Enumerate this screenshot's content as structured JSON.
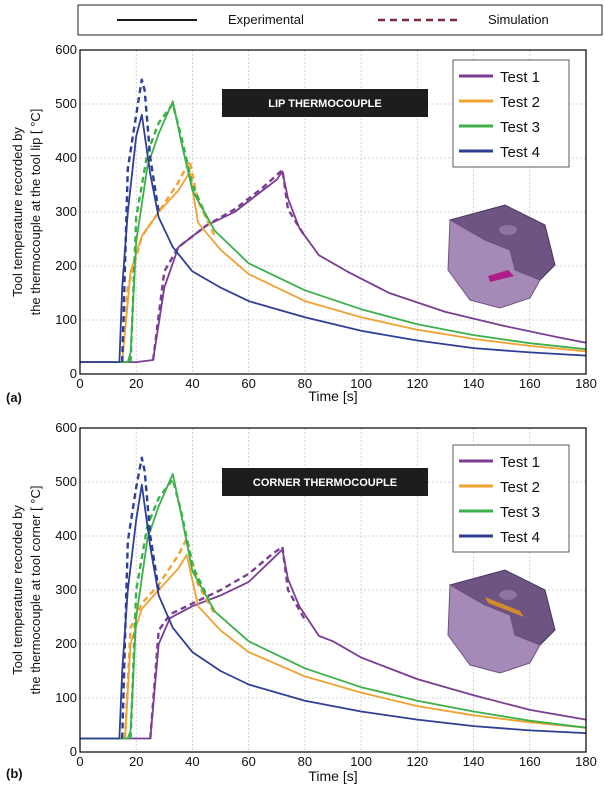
{
  "legend_top": {
    "experimental": "Experimental",
    "simulation": "Simulation"
  },
  "colors": {
    "test1": "#7b3d93",
    "test2": "#f0a232",
    "test3": "#3cb04a",
    "test4": "#2e3f94",
    "frame": "#000000"
  },
  "chart_data": [
    {
      "type": "line",
      "panel_label": "(a)",
      "annotation": "LIP THERMOCOUPLE",
      "xlabel": "Time [s]",
      "ylabel": "Tool temperature recorded by the thermocouple at the tool lip [ °C]",
      "xlim": [
        0,
        180
      ],
      "ylim": [
        0,
        600
      ],
      "xticks": [
        0,
        20,
        40,
        60,
        80,
        100,
        120,
        140,
        160,
        180
      ],
      "yticks": [
        0,
        100,
        200,
        300,
        400,
        500,
        600
      ],
      "grid": true,
      "legend_placement": "top-right",
      "series": [
        {
          "name": "Test 1",
          "color_key": "test1",
          "experimental": [
            [
              0,
              22
            ],
            [
              20,
              22
            ],
            [
              26,
              26
            ],
            [
              30,
              160
            ],
            [
              35,
              235
            ],
            [
              45,
              275
            ],
            [
              55,
              300
            ],
            [
              65,
              340
            ],
            [
              70,
              360
            ],
            [
              72,
              375
            ],
            [
              74,
              325
            ],
            [
              78,
              270
            ],
            [
              85,
              220
            ],
            [
              95,
              190
            ],
            [
              110,
              150
            ],
            [
              130,
              115
            ],
            [
              150,
              90
            ],
            [
              170,
              68
            ],
            [
              180,
              58
            ]
          ],
          "simulation": [
            [
              26,
              26
            ],
            [
              30,
              190
            ],
            [
              35,
              235
            ],
            [
              45,
              275
            ],
            [
              55,
              305
            ],
            [
              65,
              345
            ],
            [
              72,
              378
            ],
            [
              74,
              305
            ],
            [
              80,
              255
            ]
          ]
        },
        {
          "name": "Test 2",
          "color_key": "test2",
          "experimental": [
            [
              0,
              22
            ],
            [
              15,
              22
            ],
            [
              18,
              190
            ],
            [
              22,
              255
            ],
            [
              28,
              300
            ],
            [
              35,
              340
            ],
            [
              38,
              365
            ],
            [
              39,
              375
            ],
            [
              42,
              280
            ],
            [
              50,
              230
            ],
            [
              60,
              185
            ],
            [
              80,
              135
            ],
            [
              100,
              105
            ],
            [
              120,
              82
            ],
            [
              140,
              65
            ],
            [
              160,
              52
            ],
            [
              180,
              42
            ]
          ],
          "simulation": [
            [
              15,
              22
            ],
            [
              17,
              160
            ],
            [
              22,
              255
            ],
            [
              28,
              300
            ],
            [
              35,
              355
            ],
            [
              39,
              395
            ],
            [
              42,
              320
            ],
            [
              48,
              255
            ]
          ]
        },
        {
          "name": "Test 3",
          "color_key": "test3",
          "experimental": [
            [
              0,
              22
            ],
            [
              17,
              22
            ],
            [
              18,
              40
            ],
            [
              20,
              245
            ],
            [
              24,
              385
            ],
            [
              28,
              445
            ],
            [
              33,
              505
            ],
            [
              36,
              430
            ],
            [
              40,
              340
            ],
            [
              48,
              265
            ],
            [
              60,
              205
            ],
            [
              80,
              155
            ],
            [
              100,
              120
            ],
            [
              120,
              92
            ],
            [
              140,
              72
            ],
            [
              160,
              57
            ],
            [
              180,
              46
            ]
          ],
          "simulation": [
            [
              18,
              22
            ],
            [
              20,
              290
            ],
            [
              24,
              410
            ],
            [
              28,
              465
            ],
            [
              33,
              500
            ],
            [
              36,
              440
            ],
            [
              40,
              350
            ],
            [
              46,
              280
            ]
          ]
        },
        {
          "name": "Test 4",
          "color_key": "test4",
          "experimental": [
            [
              0,
              22
            ],
            [
              14,
              22
            ],
            [
              15,
              160
            ],
            [
              17,
              300
            ],
            [
              20,
              440
            ],
            [
              22,
              480
            ],
            [
              25,
              370
            ],
            [
              28,
              290
            ],
            [
              33,
              235
            ],
            [
              40,
              190
            ],
            [
              50,
              160
            ],
            [
              60,
              135
            ],
            [
              80,
              105
            ],
            [
              100,
              80
            ],
            [
              120,
              62
            ],
            [
              140,
              48
            ],
            [
              160,
              40
            ],
            [
              180,
              34
            ]
          ],
          "simulation": [
            [
              15,
              22
            ],
            [
              17,
              380
            ],
            [
              20,
              480
            ],
            [
              22,
              545
            ],
            [
              23,
              525
            ],
            [
              25,
              400
            ],
            [
              28,
              300
            ]
          ]
        }
      ]
    },
    {
      "type": "line",
      "panel_label": "(b)",
      "annotation": "CORNER THERMOCOUPLE",
      "xlabel": "Time [s]",
      "ylabel": "Tool temperature recorded by the thermocouple at tool corner [ °C]",
      "xlim": [
        0,
        180
      ],
      "ylim": [
        0,
        600
      ],
      "xticks": [
        0,
        20,
        40,
        60,
        80,
        100,
        120,
        140,
        160,
        180
      ],
      "yticks": [
        0,
        100,
        200,
        300,
        400,
        500,
        600
      ],
      "grid": true,
      "legend_placement": "top-right",
      "series": [
        {
          "name": "Test 1",
          "color_key": "test1",
          "experimental": [
            [
              0,
              25
            ],
            [
              20,
              25
            ],
            [
              25,
              25
            ],
            [
              28,
              200
            ],
            [
              32,
              248
            ],
            [
              40,
              270
            ],
            [
              50,
              290
            ],
            [
              60,
              315
            ],
            [
              68,
              355
            ],
            [
              72,
              375
            ],
            [
              74,
              320
            ],
            [
              78,
              270
            ],
            [
              85,
              215
            ],
            [
              90,
              205
            ],
            [
              100,
              175
            ],
            [
              120,
              135
            ],
            [
              140,
              105
            ],
            [
              160,
              78
            ],
            [
              180,
              60
            ]
          ],
          "simulation": [
            [
              25,
              25
            ],
            [
              28,
              225
            ],
            [
              32,
              255
            ],
            [
              40,
              275
            ],
            [
              50,
              300
            ],
            [
              60,
              330
            ],
            [
              68,
              365
            ],
            [
              72,
              380
            ],
            [
              74,
              300
            ],
            [
              80,
              245
            ]
          ]
        },
        {
          "name": "Test 2",
          "color_key": "test2",
          "experimental": [
            [
              0,
              25
            ],
            [
              16,
              25
            ],
            [
              18,
              200
            ],
            [
              22,
              265
            ],
            [
              28,
              300
            ],
            [
              35,
              340
            ],
            [
              38,
              365
            ],
            [
              42,
              270
            ],
            [
              50,
              225
            ],
            [
              60,
              185
            ],
            [
              80,
              140
            ],
            [
              100,
              110
            ],
            [
              120,
              85
            ],
            [
              140,
              68
            ],
            [
              160,
              55
            ],
            [
              180,
              45
            ]
          ],
          "simulation": [
            [
              16,
              25
            ],
            [
              18,
              230
            ],
            [
              22,
              275
            ],
            [
              28,
              310
            ],
            [
              35,
              365
            ],
            [
              38,
              395
            ],
            [
              42,
              310
            ],
            [
              48,
              255
            ]
          ]
        },
        {
          "name": "Test 3",
          "color_key": "test3",
          "experimental": [
            [
              0,
              25
            ],
            [
              17,
              25
            ],
            [
              18,
              40
            ],
            [
              20,
              250
            ],
            [
              24,
              395
            ],
            [
              28,
              455
            ],
            [
              33,
              515
            ],
            [
              36,
              440
            ],
            [
              40,
              335
            ],
            [
              48,
              260
            ],
            [
              60,
              205
            ],
            [
              80,
              155
            ],
            [
              100,
              120
            ],
            [
              120,
              95
            ],
            [
              140,
              75
            ],
            [
              160,
              58
            ],
            [
              180,
              45
            ]
          ],
          "simulation": [
            [
              18,
              25
            ],
            [
              20,
              300
            ],
            [
              24,
              420
            ],
            [
              28,
              470
            ],
            [
              33,
              505
            ],
            [
              36,
              445
            ],
            [
              40,
              345
            ],
            [
              46,
              280
            ]
          ]
        },
        {
          "name": "Test 4",
          "color_key": "test4",
          "experimental": [
            [
              0,
              25
            ],
            [
              14,
              25
            ],
            [
              15,
              150
            ],
            [
              17,
              300
            ],
            [
              20,
              430
            ],
            [
              22,
              495
            ],
            [
              25,
              380
            ],
            [
              28,
              290
            ],
            [
              33,
              230
            ],
            [
              40,
              185
            ],
            [
              50,
              150
            ],
            [
              60,
              125
            ],
            [
              80,
              95
            ],
            [
              100,
              75
            ],
            [
              120,
              60
            ],
            [
              140,
              48
            ],
            [
              160,
              40
            ],
            [
              180,
              35
            ]
          ],
          "simulation": [
            [
              15,
              25
            ],
            [
              17,
              390
            ],
            [
              20,
              490
            ],
            [
              22,
              545
            ],
            [
              23,
              520
            ],
            [
              25,
              400
            ],
            [
              28,
              300
            ]
          ]
        }
      ]
    }
  ]
}
